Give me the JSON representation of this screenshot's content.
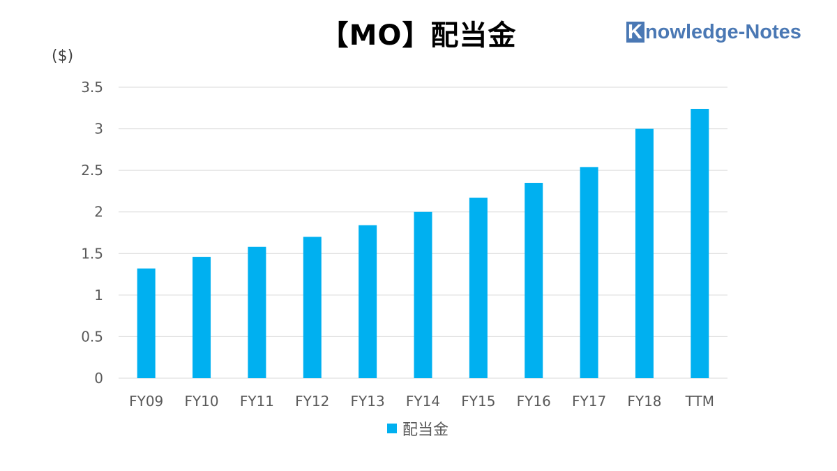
{
  "header": {
    "title": "【MO】配当金",
    "brand": "Knowledge-Notes",
    "brand_initial": "K",
    "brand_rest": "nowledge-Notes"
  },
  "colors": {
    "bar": "#00b0f0",
    "brand": "#4a78b4",
    "grid": "#d9d9d9",
    "tick_text": "#595959"
  },
  "chart_data": {
    "type": "bar",
    "title": "【MO】配当金",
    "unit_label": "($)",
    "categories": [
      "FY09",
      "FY10",
      "FY11",
      "FY12",
      "FY13",
      "FY14",
      "FY15",
      "FY16",
      "FY17",
      "FY18",
      "TTM"
    ],
    "series": [
      {
        "name": "配当金",
        "values": [
          1.32,
          1.46,
          1.58,
          1.7,
          1.84,
          2.0,
          2.17,
          2.35,
          2.54,
          3.0,
          3.24
        ]
      }
    ],
    "yticks": [
      "0",
      "0.5",
      "1",
      "1.5",
      "2",
      "2.5",
      "3",
      "3.5"
    ],
    "ylim": [
      0,
      3.5
    ],
    "grid": true,
    "legend": "bottom"
  }
}
